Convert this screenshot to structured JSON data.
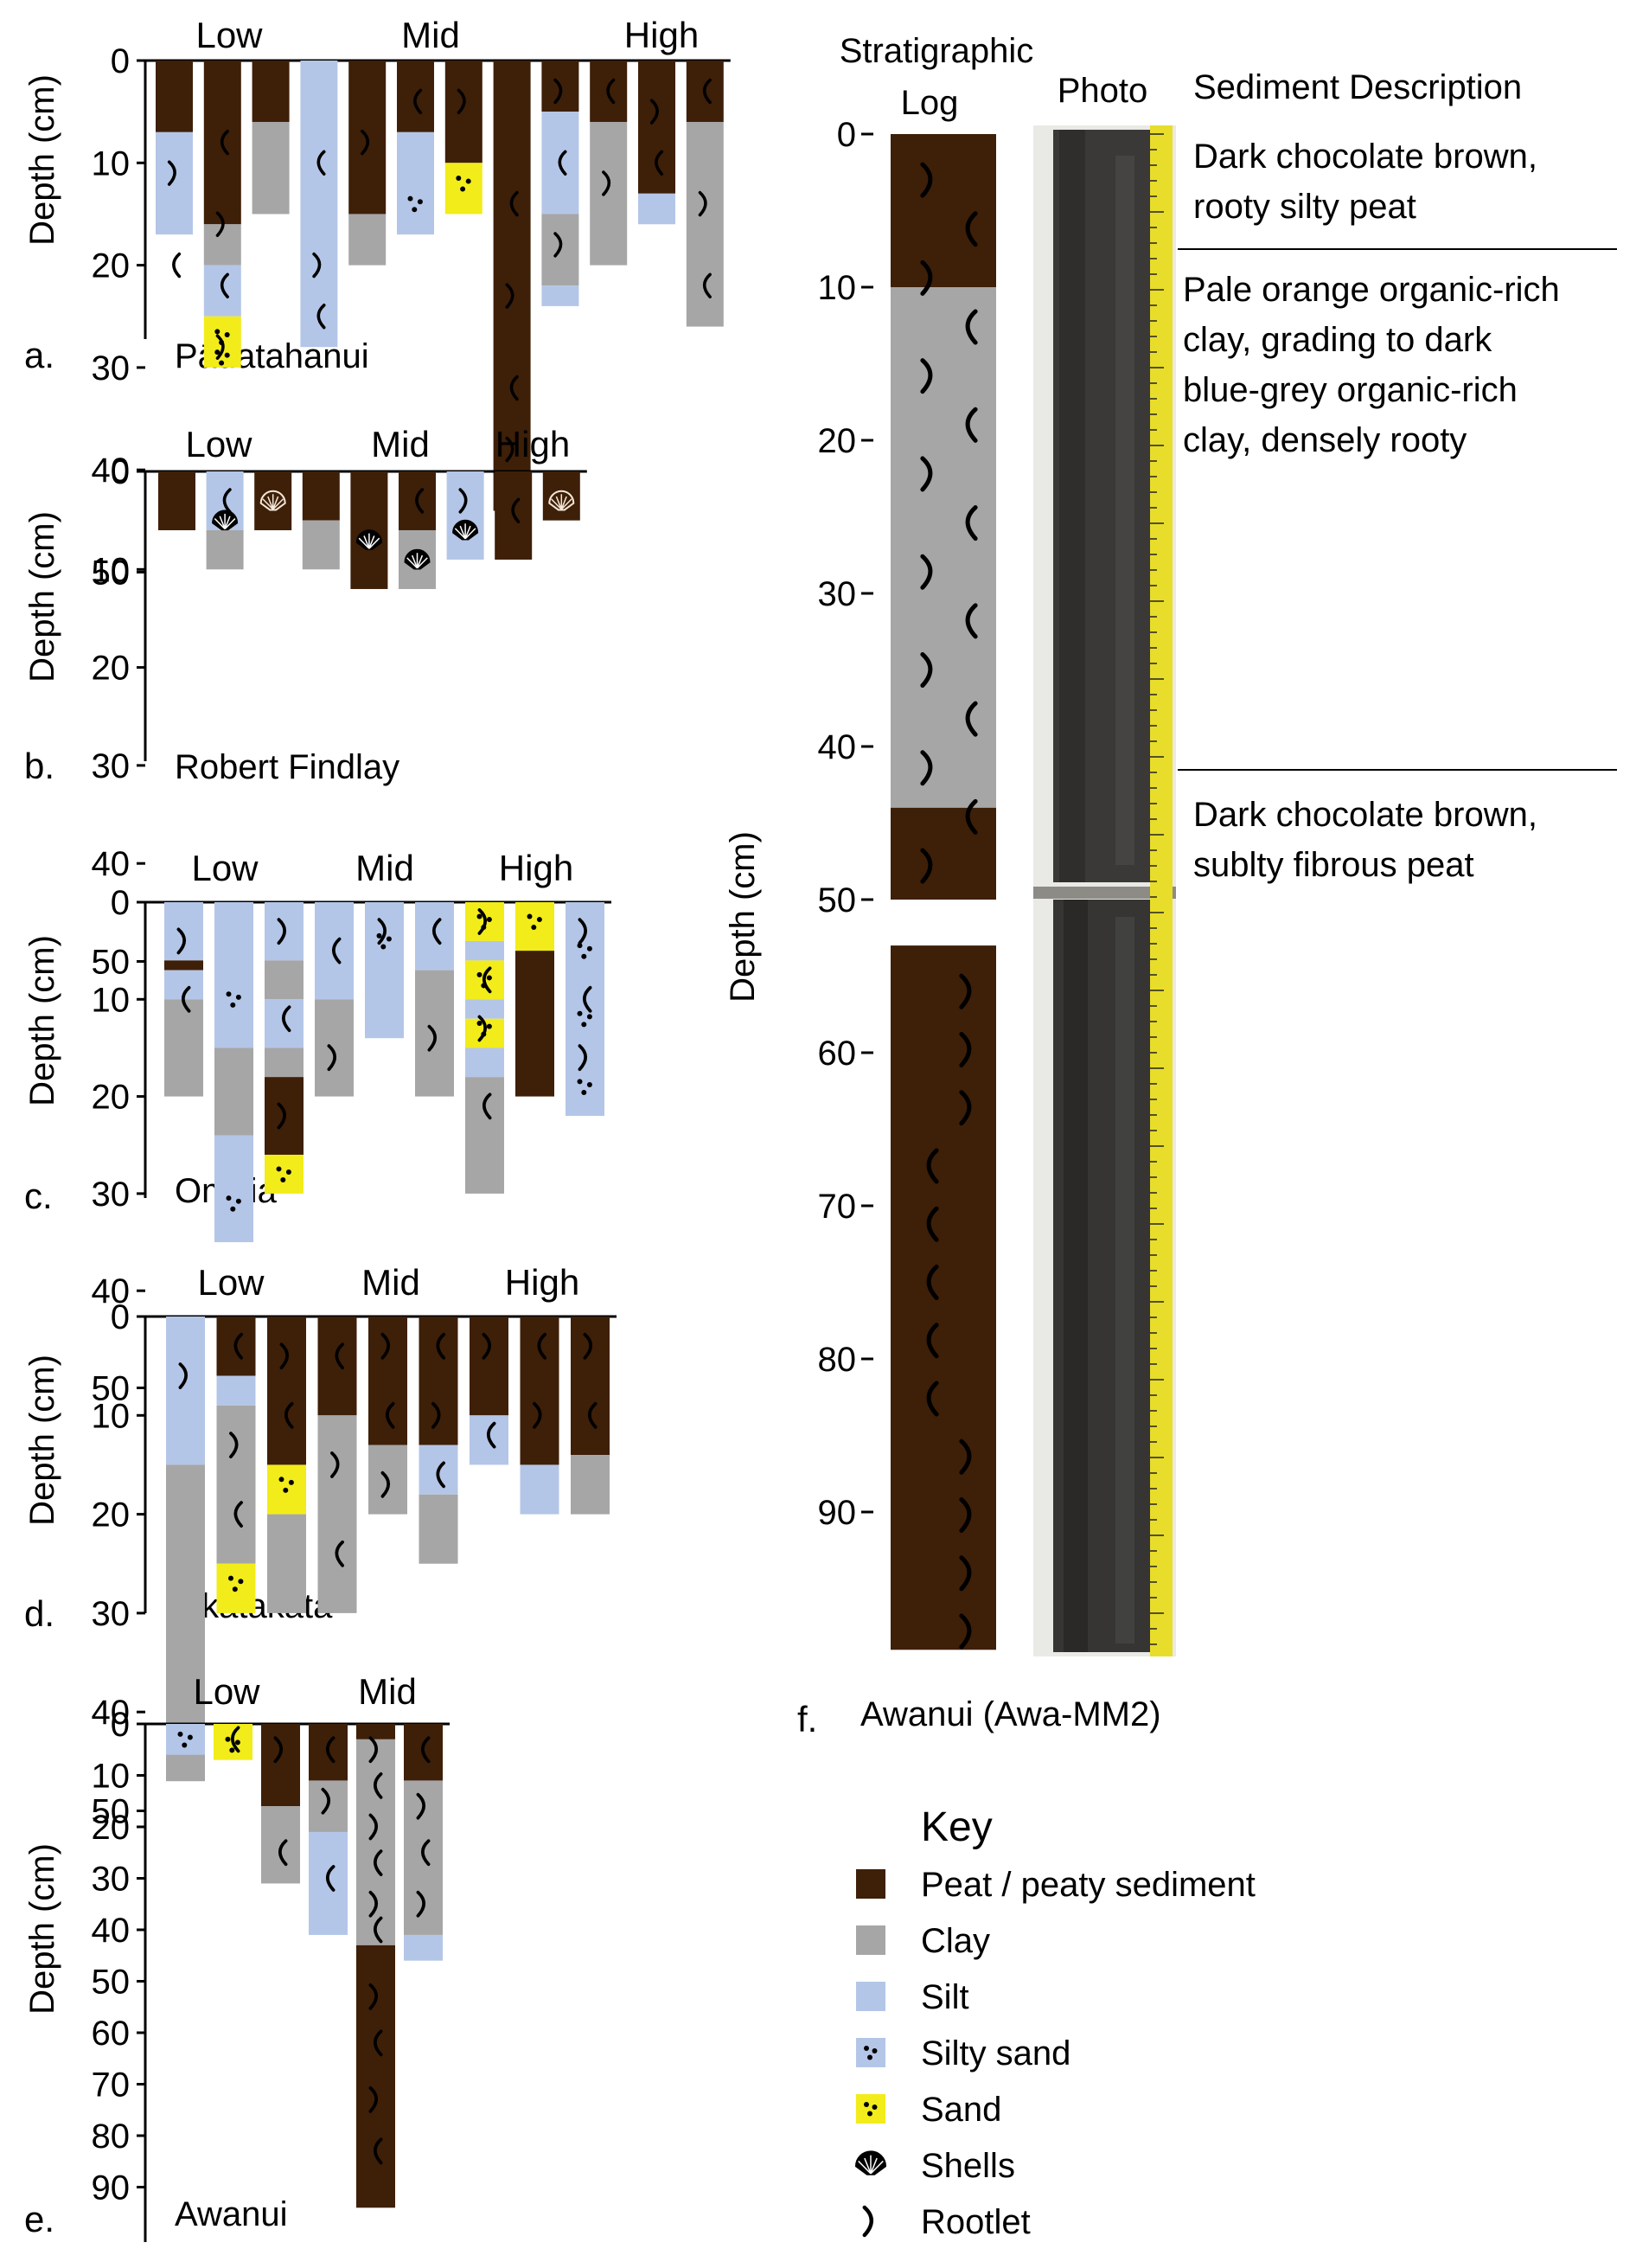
{
  "colors": {
    "peat": "#3e1f08",
    "clay": "#a7a6a6",
    "silt": "#b4c6e7",
    "sand": "#f2ec1a",
    "dot": "#000000",
    "rootlet": "#000000",
    "photo_core": "#3b3a38",
    "tape": "#e8dd2a"
  },
  "common": {
    "ylabel": "Depth (cm)"
  },
  "panels": [
    {
      "letter": "a.",
      "site": "Pāuatahanui",
      "zones": [
        "Low",
        "Mid",
        "High"
      ],
      "ticks": [
        "0",
        "10",
        "20",
        "30",
        "40",
        "50"
      ],
      "ymax": 50,
      "cores": [
        {
          "layers": [
            [
              "peat",
              0,
              7
            ],
            [
              "silt",
              7,
              17
            ]
          ],
          "roots": [
            [
              11,
              20
            ]
          ]
        },
        {
          "layers": [
            [
              "peat",
              0,
              16
            ],
            [
              "clay",
              16,
              20
            ],
            [
              "silt",
              20,
              25
            ],
            [
              "sand",
              25,
              30
            ]
          ],
          "roots": [
            [
              8,
              16
            ],
            [
              22,
              28
            ]
          ],
          "dots": [
            [
              27,
              29
            ]
          ]
        },
        {
          "layers": [
            [
              "peat",
              0,
              6
            ],
            [
              "clay",
              6,
              15
            ]
          ],
          "roots": []
        },
        {
          "layers": [
            [
              "silt",
              0,
              28
            ]
          ],
          "roots": [
            [
              10,
              20,
              25
            ]
          ]
        },
        {
          "layers": [
            [
              "peat",
              0,
              15
            ],
            [
              "clay",
              15,
              20
            ]
          ],
          "roots": [
            [
              8
            ]
          ]
        },
        {
          "layers": [
            [
              "peat",
              0,
              7
            ],
            [
              "silt",
              7,
              17
            ]
          ],
          "roots": [
            [
              4
            ]
          ],
          "dots": [
            [
              14
            ]
          ]
        },
        {
          "layers": [
            [
              "peat",
              0,
              10
            ],
            [
              "sand",
              10,
              15
            ]
          ],
          "roots": [
            [
              4
            ]
          ],
          "dots": [
            [
              12
            ]
          ]
        },
        {
          "layers": [
            [
              "peat",
              0,
              44
            ]
          ],
          "roots": [
            [
              14,
              23,
              32,
              38
            ]
          ]
        },
        {
          "layers": [
            [
              "peat",
              0,
              5
            ],
            [
              "silt",
              5,
              15
            ],
            [
              "clay",
              15,
              22
            ],
            [
              "silt",
              22,
              24
            ]
          ],
          "roots": [
            [
              3,
              10,
              18
            ]
          ]
        },
        {
          "layers": [
            [
              "peat",
              0,
              6
            ],
            [
              "clay",
              6,
              20
            ]
          ],
          "roots": [
            [
              3,
              12
            ]
          ]
        },
        {
          "layers": [
            [
              "peat",
              0,
              13
            ],
            [
              "silt",
              13,
              16
            ]
          ],
          "roots": [
            [
              5,
              10
            ]
          ]
        },
        {
          "layers": [
            [
              "peat",
              0,
              6
            ],
            [
              "clay",
              6,
              26
            ]
          ],
          "roots": [
            [
              3,
              14,
              22
            ]
          ]
        }
      ]
    },
    {
      "letter": "b.",
      "site": "Robert Findlay",
      "zones": [
        "Low",
        "Mid",
        "High"
      ],
      "ticks": [
        "0",
        "10",
        "20",
        "30",
        "40",
        "50"
      ],
      "ymax": 50,
      "cores": [
        {
          "layers": [
            [
              "peat",
              0,
              6
            ]
          ],
          "roots": []
        },
        {
          "layers": [
            [
              "silt",
              0,
              6
            ],
            [
              "clay",
              6,
              10
            ]
          ],
          "roots": [
            [
              3
            ]
          ],
          "shells": [
            [
              5
            ]
          ]
        },
        {
          "layers": [
            [
              "peat",
              0,
              6
            ]
          ],
          "roots": [],
          "shells": [
            [
              3
            ]
          ]
        },
        {
          "layers": [
            [
              "peat",
              0,
              5
            ],
            [
              "clay",
              5,
              10
            ]
          ],
          "roots": []
        },
        {
          "layers": [
            [
              "peat",
              0,
              12
            ]
          ],
          "roots": [],
          "shells": [
            [
              7
            ]
          ]
        },
        {
          "layers": [
            [
              "peat",
              0,
              6
            ],
            [
              "clay",
              6,
              12
            ]
          ],
          "roots": [
            [
              3
            ]
          ],
          "shells": [
            [
              9
            ]
          ]
        },
        {
          "layers": [
            [
              "silt",
              0,
              9
            ]
          ],
          "roots": [
            [
              3
            ]
          ],
          "shells": [
            [
              6
            ]
          ]
        },
        {
          "layers": [
            [
              "peat",
              0,
              9
            ]
          ],
          "roots": [
            [
              4
            ]
          ]
        },
        {
          "layers": [
            [
              "peat",
              0,
              5
            ]
          ],
          "roots": [],
          "shells": [
            [
              3
            ]
          ]
        }
      ]
    },
    {
      "letter": "c.",
      "site": "Omaia",
      "zones": [
        "Low",
        "Mid",
        "High"
      ],
      "ticks": [
        "0",
        "10",
        "20",
        "30",
        "40",
        "50"
      ],
      "ymax": 50,
      "cores": [
        {
          "layers": [
            [
              "silt",
              0,
              6
            ],
            [
              "peat",
              6,
              7
            ],
            [
              "silt",
              7,
              10
            ],
            [
              "clay",
              10,
              20
            ]
          ],
          "roots": [
            [
              4,
              10
            ]
          ]
        },
        {
          "layers": [
            [
              "silt",
              0,
              15
            ],
            [
              "clay",
              15,
              24
            ],
            [
              "silt",
              24,
              35
            ]
          ],
          "roots": [],
          "dots": [
            [
              10,
              31
            ]
          ]
        },
        {
          "layers": [
            [
              "silt",
              0,
              6
            ],
            [
              "clay",
              6,
              10
            ],
            [
              "silt",
              10,
              15
            ],
            [
              "clay",
              15,
              18
            ],
            [
              "peat",
              18,
              26
            ],
            [
              "sand",
              26,
              30
            ]
          ],
          "roots": [
            [
              3,
              12,
              22
            ]
          ],
          "dots": [
            [
              28
            ]
          ]
        },
        {
          "layers": [
            [
              "silt",
              0,
              10
            ],
            [
              "clay",
              10,
              20
            ]
          ],
          "roots": [
            [
              5,
              16
            ]
          ]
        },
        {
          "layers": [
            [
              "silt",
              0,
              14
            ]
          ],
          "roots": [
            [
              3
            ]
          ],
          "dots": [
            [
              4
            ]
          ]
        },
        {
          "layers": [
            [
              "silt",
              0,
              7
            ],
            [
              "clay",
              7,
              20
            ]
          ],
          "roots": [
            [
              3,
              14
            ]
          ]
        },
        {
          "layers": [
            [
              "sand",
              0,
              4
            ],
            [
              "silt",
              4,
              6
            ],
            [
              "sand",
              6,
              10
            ],
            [
              "silt",
              10,
              12
            ],
            [
              "sand",
              12,
              15
            ],
            [
              "silt",
              15,
              18
            ],
            [
              "clay",
              18,
              30
            ]
          ],
          "roots": [
            [
              2,
              8,
              13,
              21
            ]
          ],
          "dots": [
            [
              2,
              8,
              13
            ]
          ]
        },
        {
          "layers": [
            [
              "sand",
              0,
              5
            ],
            [
              "peat",
              5,
              20
            ]
          ],
          "roots": [],
          "dots": [
            [
              2
            ]
          ]
        },
        {
          "layers": [
            [
              "silt",
              0,
              22
            ]
          ],
          "roots": [
            [
              3,
              10,
              16
            ]
          ],
          "dots": [
            [
              5,
              12,
              19
            ]
          ]
        }
      ]
    },
    {
      "letter": "d.",
      "site": "Okatakata",
      "zones": [
        "Low",
        "Mid",
        "High"
      ],
      "ticks": [
        "0",
        "10",
        "20",
        "30",
        "40",
        "50"
      ],
      "ymax": 50,
      "cores": [
        {
          "layers": [
            [
              "silt",
              0,
              15
            ],
            [
              "clay",
              15,
              47
            ]
          ],
          "roots": [
            [
              6
            ]
          ]
        },
        {
          "layers": [
            [
              "peat",
              0,
              6
            ],
            [
              "silt",
              6,
              9
            ],
            [
              "clay",
              9,
              25
            ],
            [
              "sand",
              25,
              30
            ]
          ],
          "roots": [
            [
              3,
              13,
              20
            ]
          ],
          "dots": [
            [
              27
            ]
          ]
        },
        {
          "layers": [
            [
              "peat",
              0,
              15
            ],
            [
              "sand",
              15,
              20
            ],
            [
              "clay",
              20,
              30
            ]
          ],
          "roots": [
            [
              4,
              10
            ]
          ],
          "dots": [
            [
              17
            ]
          ]
        },
        {
          "layers": [
            [
              "peat",
              0,
              10
            ],
            [
              "clay",
              10,
              30
            ]
          ],
          "roots": [
            [
              4,
              15,
              24
            ]
          ]
        },
        {
          "layers": [
            [
              "peat",
              0,
              13
            ],
            [
              "clay",
              13,
              20
            ]
          ],
          "roots": [
            [
              3,
              10,
              17
            ]
          ]
        },
        {
          "layers": [
            [
              "peat",
              0,
              13
            ],
            [
              "silt",
              13,
              18
            ],
            [
              "clay",
              18,
              25
            ]
          ],
          "roots": [
            [
              3,
              10,
              16
            ]
          ]
        },
        {
          "layers": [
            [
              "peat",
              0,
              10
            ],
            [
              "silt",
              10,
              15
            ]
          ],
          "roots": [
            [
              3,
              12
            ]
          ]
        },
        {
          "layers": [
            [
              "peat",
              0,
              15
            ],
            [
              "silt",
              15,
              20
            ]
          ],
          "roots": [
            [
              3,
              10
            ]
          ]
        },
        {
          "layers": [
            [
              "peat",
              0,
              14
            ],
            [
              "clay",
              14,
              20
            ]
          ],
          "roots": [
            [
              3,
              10
            ]
          ]
        }
      ]
    },
    {
      "letter": "e.",
      "site": "Awanui",
      "zones": [
        "Low",
        "Mid"
      ],
      "ticks": [
        "0",
        "10",
        "20",
        "30",
        "40",
        "50",
        "60",
        "70",
        "80",
        "90"
      ],
      "ymax": 95,
      "cores": [
        {
          "layers": [
            [
              "silt",
              0,
              6
            ]
          ],
          "roots": [],
          "dots": [
            [
              3
            ]
          ]
        },
        {
          "layers": [
            [
              "sand",
              0,
              7
            ]
          ],
          "roots": [
            [
              3
            ]
          ],
          "dots": [
            [
              4
            ]
          ]
        },
        {
          "layers": [
            [
              "peat",
              0,
              16
            ],
            [
              "clay",
              16,
              31
            ]
          ],
          "roots": [
            [
              5,
              25
            ]
          ]
        },
        {
          "layers": [
            [
              "peat",
              0,
              11
            ],
            [
              "clay",
              11,
              21
            ],
            [
              "silt",
              21,
              41
            ]
          ],
          "roots": [
            [
              5,
              15,
              30
            ]
          ]
        },
        {
          "layers": [
            [
              "peat",
              0,
              3
            ],
            [
              "clay",
              3,
              43
            ],
            [
              "peat",
              43,
              94
            ]
          ],
          "roots": [
            [
              5,
              12,
              20,
              27,
              35,
              40,
              53,
              62,
              73,
              83
            ]
          ]
        },
        {
          "layers": [
            [
              "peat",
              0,
              11
            ],
            [
              "clay",
              11,
              41
            ],
            [
              "silt",
              41,
              46
            ]
          ],
          "roots": [
            [
              5,
              16,
              25,
              35
            ]
          ]
        }
      ]
    }
  ],
  "panel_f": {
    "letter": "f.",
    "caption": "Awanui (Awa-MM2)",
    "log_header_1": "Stratigraphic",
    "log_header_2": "Log",
    "photo_header": "Photo",
    "desc_header": "Sediment Description",
    "ylabel": "Depth (cm)",
    "ticks": [
      "0",
      "10",
      "20",
      "30",
      "40",
      "50",
      "60",
      "70",
      "80",
      "90"
    ],
    "log_upper": [
      [
        "peat",
        0,
        10
      ],
      [
        "clay",
        10,
        44
      ],
      [
        "peat",
        44,
        50
      ]
    ],
    "log_lower": [
      [
        "peat",
        53,
        99
      ]
    ],
    "descriptions": [
      [
        "Dark chocolate brown,",
        "rooty silty peat"
      ],
      [
        "Pale orange organic-rich",
        "clay, grading to dark",
        "blue-grey organic-rich",
        "clay, densely rooty"
      ],
      [
        "Dark chocolate brown,",
        "sublty fibrous peat"
      ]
    ]
  },
  "key": {
    "title": "Key",
    "items": [
      {
        "type": "peat",
        "label": "Peat / peaty sediment"
      },
      {
        "type": "clay",
        "label": "Clay"
      },
      {
        "type": "silt",
        "label": "Silt"
      },
      {
        "type": "siltysand",
        "label": "Silty sand"
      },
      {
        "type": "sand",
        "label": "Sand"
      },
      {
        "type": "shell",
        "label": "Shells"
      },
      {
        "type": "rootlet",
        "label": "Rootlet"
      }
    ]
  }
}
